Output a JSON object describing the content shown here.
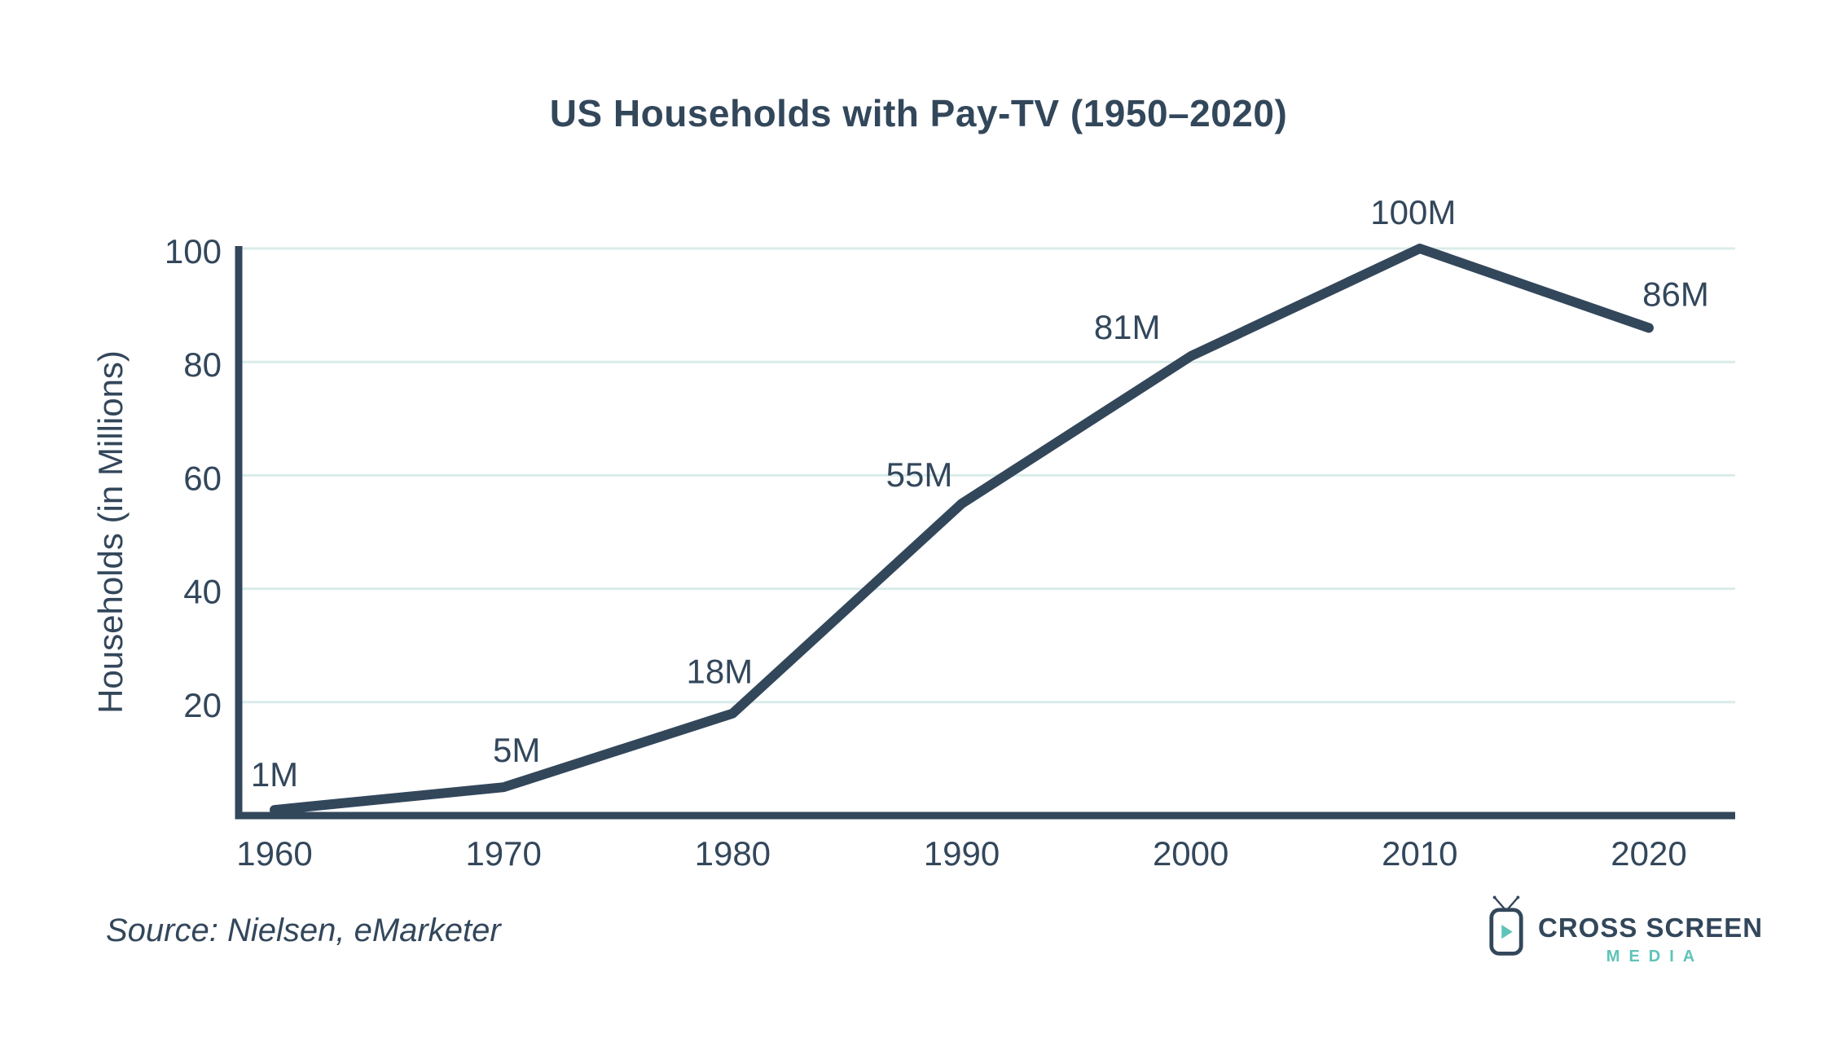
{
  "title": "US Households with Pay-TV (1950–2020)",
  "source_note": "Source: Nielsen, eMarketer",
  "logo": {
    "brand": "CROSS SCREEN",
    "brand_sub": "MEDIA",
    "icon": "tv-play-icon"
  },
  "colors": {
    "ink": "#33475b",
    "grid": "#d9ece9",
    "accent_teal": "#5ec4b8",
    "background": "#ffffff"
  },
  "chart_data": {
    "type": "line",
    "title": "US Households with Pay-TV (1950–2020)",
    "x": [
      1960,
      1970,
      1980,
      1990,
      2000,
      2010,
      2020
    ],
    "x_tick_labels": [
      "1960",
      "1970",
      "1980",
      "1990",
      "2000",
      "2010",
      "2020"
    ],
    "values": [
      1,
      5,
      18,
      55,
      81,
      100,
      86
    ],
    "point_labels": [
      "1M",
      "5M",
      "18M",
      "55M",
      "81M",
      "100M",
      "86M"
    ],
    "xlabel": "",
    "ylabel": "Households (in Millions)",
    "ylim": [
      0,
      100
    ],
    "yticks": [
      20,
      40,
      60,
      80,
      100
    ],
    "grid": "horizontal",
    "legend": "none",
    "line_color": "#33475b",
    "source": "Nielsen, eMarketer"
  }
}
